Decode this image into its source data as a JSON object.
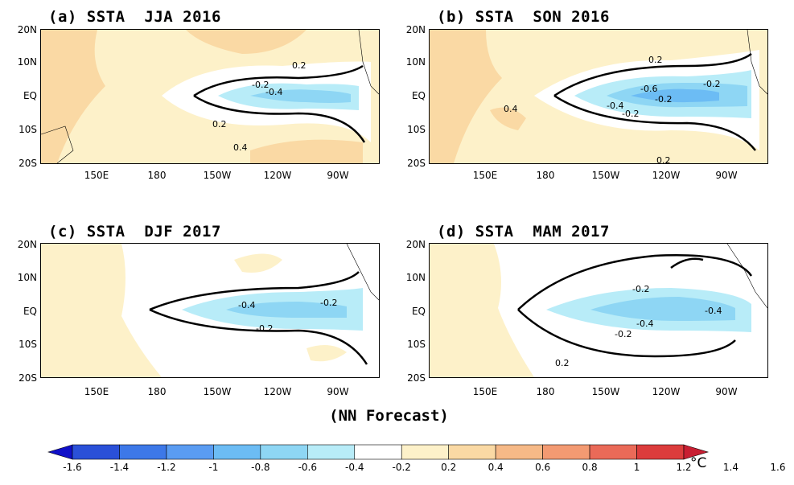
{
  "figure": {
    "footer": "(NN Forecast)",
    "unit": "°C",
    "lat_labels": [
      "20N",
      "10N",
      "EQ",
      "10S",
      "20S"
    ],
    "lon_labels": [
      "150E",
      "180",
      "150W",
      "120W",
      "90W"
    ]
  },
  "panels": [
    {
      "id": "a",
      "title": "(a) SSTA  JJA 2016",
      "contour_labels": [
        "0.2",
        "-0.2",
        "-0.4",
        "0.2",
        "0.4"
      ]
    },
    {
      "id": "b",
      "title": "(b) SSTA  SON 2016",
      "contour_labels": [
        "0.2",
        "-0.2",
        "-0.6",
        "-0.2",
        "0.4",
        "-0.4",
        "-0.2",
        "0.2"
      ]
    },
    {
      "id": "c",
      "title": "(c) SSTA  DJF 2017",
      "contour_labels": [
        "-0.4",
        "-0.2",
        "-0.2"
      ]
    },
    {
      "id": "d",
      "title": "(d) SSTA  MAM 2017",
      "contour_labels": [
        "-0.2",
        "-0.4",
        "-0.4",
        "-0.2",
        "0.2"
      ]
    }
  ],
  "colorbar": {
    "ticks": [
      "-1.6",
      "-1.4",
      "-1.2",
      "-1",
      "-0.8",
      "-0.6",
      "-0.4",
      "-0.2",
      "0.2",
      "0.4",
      "0.6",
      "0.8",
      "1",
      "1.2",
      "1.4",
      "1.6"
    ],
    "colors": [
      "#1010c8",
      "#2a50d8",
      "#3d78e8",
      "#5a9cf2",
      "#6cbcf4",
      "#8ed6f4",
      "#b8ecf8",
      "#ffffff",
      "#fdf1c9",
      "#fad9a4",
      "#f6b987",
      "#f39a72",
      "#ea6a58",
      "#dc3c3c",
      "#c81e32"
    ]
  }
}
